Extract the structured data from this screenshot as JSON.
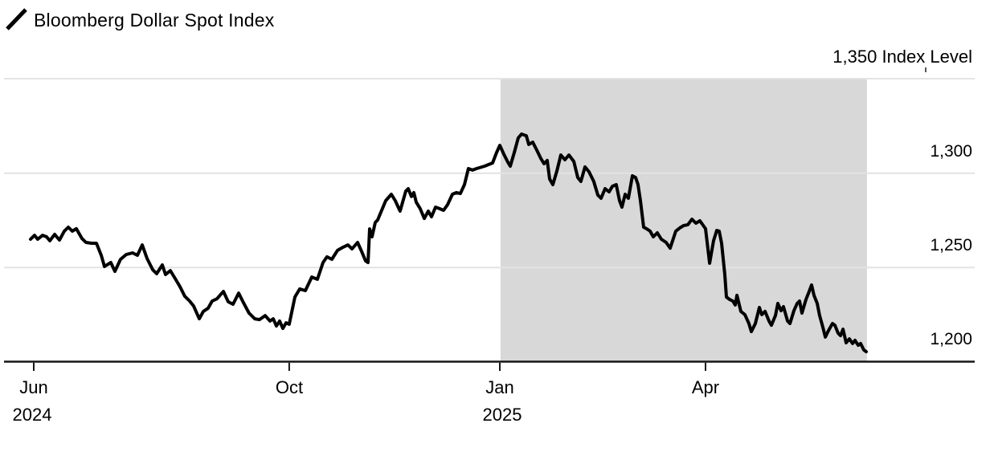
{
  "colors": {
    "background": "#ffffff",
    "line": "#000000",
    "grid": "#e3e3e3",
    "axis": "#161616",
    "shade": "#d8d8d8",
    "text": "#000000"
  },
  "chart_data": {
    "type": "line",
    "title": "Bloomberg Dollar Spot Index",
    "grid": true,
    "legend_position": "top-left",
    "y_axis": {
      "side": "right",
      "unit": "Index Level",
      "ylim": [
        1200,
        1350
      ],
      "ticks": [
        {
          "value": 1350,
          "label": "1,350 Index Level"
        },
        {
          "value": 1300,
          "label": "1,300"
        },
        {
          "value": 1250,
          "label": "1,250"
        },
        {
          "value": 1200,
          "label": "1,200"
        }
      ]
    },
    "x_axis": {
      "ticks": [
        {
          "label": "Jun",
          "year_label": "2024",
          "t": 0.0283
        },
        {
          "label": "Oct",
          "t": 0.2928
        },
        {
          "label": "Jan",
          "year_label": "2025",
          "t": 0.5108
        },
        {
          "label": "Apr",
          "t": 0.7238
        }
      ]
    },
    "shaded_region": {
      "t_start": 0.5116,
      "t_end": 0.891,
      "color": "#d8d8d8"
    },
    "series": [
      {
        "name": "Bloomberg Dollar Spot Index",
        "color": "#000000",
        "points": [
          [
            0.025,
            1265.0
          ],
          [
            0.0291,
            1267.1
          ],
          [
            0.0324,
            1265.0
          ],
          [
            0.0374,
            1267.1
          ],
          [
            0.0416,
            1266.3
          ],
          [
            0.0449,
            1264.2
          ],
          [
            0.0499,
            1267.6
          ],
          [
            0.0549,
            1264.6
          ],
          [
            0.0599,
            1269.3
          ],
          [
            0.0641,
            1271.4
          ],
          [
            0.0682,
            1269.3
          ],
          [
            0.0724,
            1270.6
          ],
          [
            0.0782,
            1265.4
          ],
          [
            0.0824,
            1263.3
          ],
          [
            0.0882,
            1262.9
          ],
          [
            0.0932,
            1262.9
          ],
          [
            0.0982,
            1256.5
          ],
          [
            0.1015,
            1250.6
          ],
          [
            0.1081,
            1252.7
          ],
          [
            0.1123,
            1248.0
          ],
          [
            0.1181,
            1254.4
          ],
          [
            0.124,
            1256.9
          ],
          [
            0.1306,
            1257.8
          ],
          [
            0.1356,
            1256.5
          ],
          [
            0.1406,
            1262.0
          ],
          [
            0.1456,
            1254.8
          ],
          [
            0.1514,
            1248.9
          ],
          [
            0.1556,
            1246.8
          ],
          [
            0.1614,
            1251.4
          ],
          [
            0.1647,
            1246.3
          ],
          [
            0.1697,
            1248.4
          ],
          [
            0.1747,
            1244.2
          ],
          [
            0.1797,
            1239.9
          ],
          [
            0.1847,
            1234.8
          ],
          [
            0.1897,
            1232.3
          ],
          [
            0.1938,
            1229.7
          ],
          [
            0.1997,
            1222.9
          ],
          [
            0.2038,
            1226.8
          ],
          [
            0.2088,
            1228.5
          ],
          [
            0.213,
            1232.3
          ],
          [
            0.218,
            1233.5
          ],
          [
            0.2246,
            1237.4
          ],
          [
            0.2296,
            1231.9
          ],
          [
            0.2346,
            1230.6
          ],
          [
            0.2404,
            1236.5
          ],
          [
            0.2454,
            1231.4
          ],
          [
            0.2512,
            1225.9
          ],
          [
            0.2571,
            1222.9
          ],
          [
            0.262,
            1222.5
          ],
          [
            0.2679,
            1224.6
          ],
          [
            0.2729,
            1221.7
          ],
          [
            0.2762,
            1222.9
          ],
          [
            0.2795,
            1219.1
          ],
          [
            0.2829,
            1221.7
          ],
          [
            0.2862,
            1217.8
          ],
          [
            0.2895,
            1220.8
          ],
          [
            0.2928,
            1220.0
          ],
          [
            0.2987,
            1234.4
          ],
          [
            0.3037,
            1238.7
          ],
          [
            0.3095,
            1237.8
          ],
          [
            0.3161,
            1245.0
          ],
          [
            0.322,
            1243.8
          ],
          [
            0.3278,
            1252.7
          ],
          [
            0.3319,
            1255.7
          ],
          [
            0.3369,
            1254.4
          ],
          [
            0.3428,
            1259.1
          ],
          [
            0.3486,
            1260.8
          ],
          [
            0.3536,
            1262.0
          ],
          [
            0.3578,
            1259.9
          ],
          [
            0.3636,
            1263.3
          ],
          [
            0.3677,
            1258.6
          ],
          [
            0.3719,
            1253.5
          ],
          [
            0.3744,
            1252.7
          ],
          [
            0.376,
            1270.5
          ],
          [
            0.3785,
            1266.3
          ],
          [
            0.3819,
            1273.9
          ],
          [
            0.3844,
            1275.2
          ],
          [
            0.3927,
            1285.4
          ],
          [
            0.3985,
            1288.8
          ],
          [
            0.4026,
            1285.4
          ],
          [
            0.4076,
            1279.9
          ],
          [
            0.4135,
            1290.5
          ],
          [
            0.416,
            1291.8
          ],
          [
            0.4193,
            1287.6
          ],
          [
            0.4218,
            1289.7
          ],
          [
            0.4243,
            1284.6
          ],
          [
            0.4284,
            1281.2
          ],
          [
            0.4326,
            1276.0
          ],
          [
            0.4368,
            1279.9
          ],
          [
            0.4401,
            1276.9
          ],
          [
            0.4443,
            1282.0
          ],
          [
            0.4484,
            1281.2
          ],
          [
            0.4526,
            1280.3
          ],
          [
            0.4567,
            1283.3
          ],
          [
            0.4617,
            1288.8
          ],
          [
            0.4659,
            1289.7
          ],
          [
            0.47,
            1289.2
          ],
          [
            0.4742,
            1293.9
          ],
          [
            0.4783,
            1302.4
          ],
          [
            0.4825,
            1301.6
          ],
          [
            0.4867,
            1302.4
          ],
          [
            0.495,
            1303.7
          ],
          [
            0.5033,
            1305.4
          ],
          [
            0.5075,
            1310.9
          ],
          [
            0.5108,
            1314.7
          ],
          [
            0.515,
            1310.0
          ],
          [
            0.5191,
            1305.8
          ],
          [
            0.5216,
            1303.7
          ],
          [
            0.5258,
            1310.9
          ],
          [
            0.5299,
            1318.6
          ],
          [
            0.5333,
            1320.7
          ],
          [
            0.5383,
            1319.8
          ],
          [
            0.5408,
            1315.2
          ],
          [
            0.5449,
            1316.4
          ],
          [
            0.5491,
            1312.2
          ],
          [
            0.5532,
            1307.9
          ],
          [
            0.5566,
            1305.0
          ],
          [
            0.5599,
            1306.7
          ],
          [
            0.5624,
            1296.9
          ],
          [
            0.5657,
            1293.9
          ],
          [
            0.5699,
            1301.1
          ],
          [
            0.574,
            1309.6
          ],
          [
            0.5782,
            1307.1
          ],
          [
            0.5824,
            1309.6
          ],
          [
            0.5874,
            1306.2
          ],
          [
            0.5915,
            1297.7
          ],
          [
            0.5948,
            1295.6
          ],
          [
            0.599,
            1303.3
          ],
          [
            0.6032,
            1300.7
          ],
          [
            0.6081,
            1295.6
          ],
          [
            0.6123,
            1288.4
          ],
          [
            0.6156,
            1286.7
          ],
          [
            0.6198,
            1291.8
          ],
          [
            0.624,
            1290.1
          ],
          [
            0.6273,
            1293.0
          ],
          [
            0.6314,
            1293.9
          ],
          [
            0.6348,
            1285.4
          ],
          [
            0.6373,
            1282.0
          ],
          [
            0.6406,
            1288.8
          ],
          [
            0.6439,
            1286.7
          ],
          [
            0.6481,
            1298.6
          ],
          [
            0.6514,
            1297.7
          ],
          [
            0.6539,
            1293.9
          ],
          [
            0.6564,
            1285.4
          ],
          [
            0.6597,
            1271.4
          ],
          [
            0.663,
            1270.5
          ],
          [
            0.6664,
            1269.3
          ],
          [
            0.6697,
            1266.3
          ],
          [
            0.6739,
            1268.4
          ],
          [
            0.678,
            1265.0
          ],
          [
            0.683,
            1263.3
          ],
          [
            0.6872,
            1260.3
          ],
          [
            0.693,
            1269.3
          ],
          [
            0.6972,
            1271.0
          ],
          [
            0.7013,
            1272.3
          ],
          [
            0.7055,
            1272.7
          ],
          [
            0.7097,
            1275.6
          ],
          [
            0.7138,
            1273.5
          ],
          [
            0.718,
            1274.8
          ],
          [
            0.7238,
            1270.6
          ],
          [
            0.728,
            1252.3
          ],
          [
            0.7321,
            1264.2
          ],
          [
            0.7354,
            1269.7
          ],
          [
            0.7379,
            1269.3
          ],
          [
            0.7404,
            1262.9
          ],
          [
            0.7438,
            1246.3
          ],
          [
            0.7454,
            1234.4
          ],
          [
            0.7488,
            1233.1
          ],
          [
            0.7521,
            1232.3
          ],
          [
            0.7546,
            1230.2
          ],
          [
            0.7563,
            1235.3
          ],
          [
            0.7604,
            1226.8
          ],
          [
            0.7646,
            1225.1
          ],
          [
            0.7687,
            1220.4
          ],
          [
            0.7712,
            1216.1
          ],
          [
            0.7754,
            1220.4
          ],
          [
            0.7795,
            1228.9
          ],
          [
            0.782,
            1225.1
          ],
          [
            0.7854,
            1226.8
          ],
          [
            0.7895,
            1221.7
          ],
          [
            0.792,
            1219.5
          ],
          [
            0.7962,
            1224.6
          ],
          [
            0.7987,
            1231.0
          ],
          [
            0.802,
            1227.2
          ],
          [
            0.8045,
            1229.3
          ],
          [
            0.8087,
            1221.7
          ],
          [
            0.8112,
            1220.4
          ],
          [
            0.8153,
            1227.2
          ],
          [
            0.8186,
            1231.0
          ],
          [
            0.8211,
            1232.3
          ],
          [
            0.8236,
            1225.9
          ],
          [
            0.8278,
            1233.1
          ],
          [
            0.8311,
            1237.4
          ],
          [
            0.8336,
            1240.8
          ],
          [
            0.8361,
            1235.3
          ],
          [
            0.8394,
            1231.0
          ],
          [
            0.8419,
            1224.6
          ],
          [
            0.8453,
            1218.3
          ],
          [
            0.8478,
            1213.2
          ],
          [
            0.8511,
            1216.6
          ],
          [
            0.8552,
            1220.4
          ],
          [
            0.8577,
            1219.5
          ],
          [
            0.8611,
            1215.3
          ],
          [
            0.8636,
            1214.0
          ],
          [
            0.8661,
            1217.4
          ],
          [
            0.8694,
            1210.2
          ],
          [
            0.8727,
            1212.3
          ],
          [
            0.876,
            1209.8
          ],
          [
            0.8785,
            1211.5
          ],
          [
            0.8819,
            1208.9
          ],
          [
            0.8844,
            1209.8
          ],
          [
            0.8877,
            1206.4
          ],
          [
            0.8902,
            1205.5
          ]
        ]
      }
    ]
  }
}
